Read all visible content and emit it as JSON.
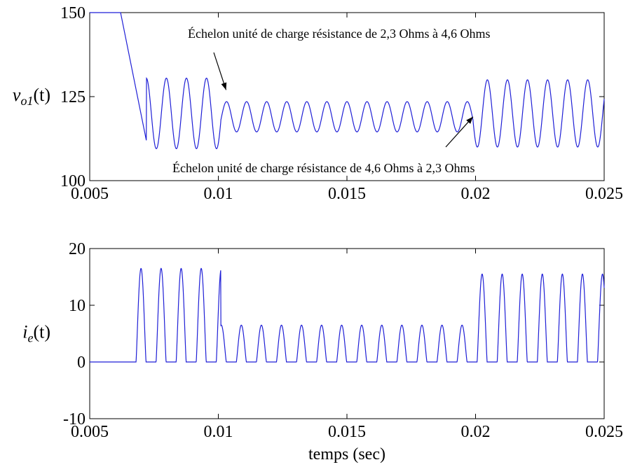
{
  "chart_data": [
    {
      "type": "line",
      "ylabel": "v_o1(t)",
      "ylabel_parts": {
        "base": "v",
        "sub": "o1",
        "rest": "(t)"
      },
      "xlim": [
        0.005,
        0.025
      ],
      "ylim": [
        100,
        150
      ],
      "xticks": [
        "0.005",
        "0.01",
        "0.015",
        "0.02",
        "0.025"
      ],
      "yticks": [
        "100",
        "125",
        "150"
      ],
      "series_color": "#1f1fd6",
      "annotations": [
        {
          "text": "Échelon unité de charge résistance de  2,3 Ohms à 4,6 Ohms",
          "arrow_to": [
            0.0103,
            127
          ]
        },
        {
          "text": "Échelon unité de charge résistance de  4,6 Ohms à 2,3 Ohms",
          "arrow_to": [
            0.0199,
            119
          ]
        }
      ],
      "segments": [
        {
          "t0": 0.005,
          "t1": 0.0062,
          "kind": "high",
          "value": 150
        },
        {
          "t0": 0.0062,
          "t1": 0.0072,
          "kind": "ramp",
          "from": 150,
          "to": 112
        },
        {
          "t0": 0.0072,
          "t1": 0.0101,
          "kind": "osc",
          "center": 120,
          "amp": 10.5,
          "period": 0.00078
        },
        {
          "t0": 0.0101,
          "t1": 0.0199,
          "kind": "osc",
          "center": 119,
          "amp": 4.5,
          "period": 0.00078
        },
        {
          "t0": 0.0199,
          "t1": 0.025,
          "kind": "osc",
          "center": 120,
          "amp": 10,
          "period": 0.00078
        }
      ]
    },
    {
      "type": "line",
      "ylabel": "i_e(t)",
      "ylabel_parts": {
        "base": "i",
        "sub": "e",
        "rest": "(t)"
      },
      "xlabel": "temps (sec)",
      "xlim": [
        0.005,
        0.025
      ],
      "ylim": [
        -10,
        20
      ],
      "xticks": [
        "0.005",
        "0.01",
        "0.015",
        "0.02",
        "0.025"
      ],
      "yticks": [
        "-10",
        "0",
        "10",
        "20"
      ],
      "series_color": "#1f1fd6",
      "segments": [
        {
          "t0": 0.005,
          "t1": 0.0068,
          "kind": "flat",
          "value": 0
        },
        {
          "t0": 0.0068,
          "t1": 0.0101,
          "kind": "pulse",
          "peak": 16.5,
          "period": 0.00078
        },
        {
          "t0": 0.0101,
          "t1": 0.0199,
          "kind": "pulse",
          "peak": 6.5,
          "period": 0.00078
        },
        {
          "t0": 0.0199,
          "t1": 0.025,
          "kind": "pulse",
          "peak": 15.5,
          "period": 0.00078
        }
      ]
    }
  ]
}
